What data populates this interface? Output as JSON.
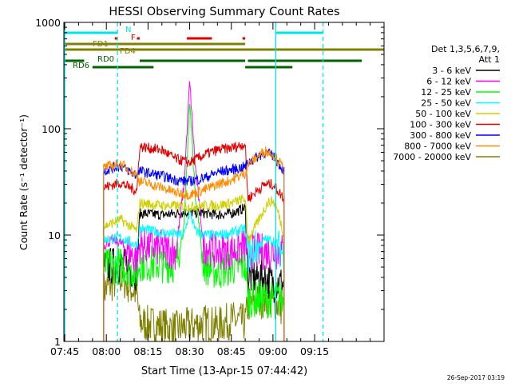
{
  "chart_data": {
    "type": "line",
    "title": "HESSI Observing Summary Count Rates",
    "xlabel": "Start Time (13-Apr-15 07:44:42)",
    "ylabel": "Count Rate (s⁻¹ detector⁻¹)",
    "yscale": "log",
    "ylim": [
      1,
      1000
    ],
    "xlim_minutes_of_day": [
      464.7,
      580
    ],
    "xticks": [
      "07:45",
      "08:00",
      "08:15",
      "08:30",
      "08:45",
      "09:00",
      "09:15"
    ],
    "xtick_minutes": [
      465,
      480,
      495,
      510,
      525,
      540,
      555
    ],
    "yticks": [
      "1",
      "10",
      "100",
      "1000"
    ],
    "ytick_values": [
      1,
      10,
      100,
      1000
    ],
    "legend_header": [
      "Det 1,3,5,6,7,9,",
      "Att 1"
    ],
    "footer_stamp": "26-Sep-2017 03:19",
    "flags": [
      {
        "label": "N",
        "color": "#00e5e5",
        "segments": [
          [
            465,
            484
          ],
          [
            541,
            558
          ]
        ]
      },
      {
        "label": "F",
        "color": "#e00000",
        "segments": [
          [
            483,
            484
          ],
          [
            491,
            492
          ],
          [
            509,
            518
          ],
          [
            529,
            530
          ]
        ]
      },
      {
        "label": "FD1",
        "color": "#808000",
        "segments": [
          [
            465,
            530
          ]
        ]
      },
      {
        "label": "FD4",
        "color": "#808000",
        "segments": [
          [
            465,
            580
          ]
        ]
      },
      {
        "label": "RD0",
        "color": "#006400",
        "segments": [
          [
            465,
            472
          ],
          [
            492,
            530
          ],
          [
            531,
            572
          ]
        ]
      },
      {
        "label": "RD6",
        "color": "#006400",
        "segments": [
          [
            475,
            497
          ],
          [
            530,
            547
          ]
        ]
      }
    ],
    "vertical_markers": [
      {
        "color": "#00e5e5",
        "style": "solid",
        "minutes": [
          465,
          541
        ]
      },
      {
        "color": "#00e5e5",
        "style": "dashed",
        "minutes": [
          484,
          558
        ]
      }
    ],
    "segment_breaks_minutes": [
      [
        479,
        544
      ]
    ],
    "series": [
      {
        "name": "3 - 6 keV",
        "color": "#000000",
        "x": [
          479,
          485,
          491,
          492,
          500,
          510,
          516,
          520,
          525,
          530,
          531,
          537,
          540,
          544
        ],
        "y": [
          5,
          5.3,
          4.5,
          16,
          15.5,
          16.5,
          16,
          15.5,
          16,
          18,
          4,
          4,
          3.5,
          3.5
        ]
      },
      {
        "name": "6 - 12 keV",
        "color": "#ff00ff",
        "x": [
          479,
          482,
          485,
          488,
          491,
          492,
          500,
          505,
          508,
          510,
          512,
          515,
          520,
          525,
          530,
          531,
          537,
          540,
          544
        ],
        "y": [
          8,
          9,
          8.5,
          7,
          6,
          8,
          7.5,
          7,
          30,
          280,
          45,
          8,
          7,
          7,
          8,
          7,
          7,
          7,
          7
        ]
      },
      {
        "name": "12 - 25 keV",
        "color": "#00ff00",
        "x": [
          479,
          485,
          491,
          492,
          500,
          505,
          508,
          510,
          512,
          515,
          520,
          525,
          530,
          531,
          537,
          540,
          544
        ],
        "y": [
          5,
          5.2,
          4.5,
          5.5,
          5.3,
          5.3,
          12,
          180,
          25,
          5.2,
          4.5,
          5,
          5.2,
          2.5,
          2.5,
          2.5,
          2.5
        ]
      },
      {
        "name": "25 - 50 keV",
        "color": "#00ffff",
        "x": [
          479,
          485,
          491,
          492,
          500,
          508,
          510,
          512,
          515,
          520,
          525,
          530,
          531,
          537,
          540,
          544
        ],
        "y": [
          9,
          9.5,
          8,
          11.5,
          10.5,
          10,
          17,
          11,
          10,
          10,
          10.5,
          11.5,
          6.5,
          9,
          9,
          6.5
        ]
      },
      {
        "name": "50 - 100 keV",
        "color": "#d0d000",
        "x": [
          479,
          485,
          491,
          492,
          500,
          510,
          516,
          520,
          525,
          530,
          531,
          535,
          538,
          540,
          542,
          544
        ],
        "y": [
          12,
          14,
          11,
          20,
          19,
          18.5,
          19,
          19,
          20,
          22,
          9,
          14,
          20,
          21,
          16,
          10
        ]
      },
      {
        "name": "100 - 300 keV",
        "color": "#e00000",
        "x": [
          479,
          485,
          491,
          492,
          500,
          505,
          510,
          516,
          520,
          525,
          530,
          531,
          537,
          540,
          544
        ],
        "y": [
          28,
          31,
          26,
          68,
          63,
          52,
          48,
          58,
          63,
          66,
          72,
          22,
          30,
          30,
          22
        ]
      },
      {
        "name": "300 - 800 keV",
        "color": "#0000ff",
        "x": [
          479,
          485,
          491,
          492,
          500,
          505,
          510,
          516,
          520,
          525,
          530,
          531,
          537,
          540,
          544
        ],
        "y": [
          40,
          45,
          36,
          40,
          36,
          33,
          32,
          35,
          39,
          41,
          44,
          48,
          60,
          56,
          40
        ]
      },
      {
        "name": "800 - 7000 keV",
        "color": "#ff8c00",
        "x": [
          479,
          485,
          491,
          492,
          500,
          505,
          510,
          516,
          520,
          525,
          530,
          531,
          537,
          540,
          544
        ],
        "y": [
          43,
          47,
          37,
          32,
          28,
          25,
          24,
          27,
          30,
          33,
          38,
          46,
          62,
          58,
          42
        ]
      },
      {
        "name": "7000 - 20000 keV",
        "color": "#808000",
        "x": [
          479,
          485,
          491,
          492,
          500,
          505,
          510,
          516,
          520,
          525,
          530,
          531,
          537,
          540,
          544
        ],
        "y": [
          3,
          4,
          2.8,
          1.5,
          1.4,
          1.3,
          1.4,
          1.5,
          1.4,
          1.6,
          1.5,
          2.2,
          2.5,
          2.4,
          2
        ]
      }
    ]
  }
}
